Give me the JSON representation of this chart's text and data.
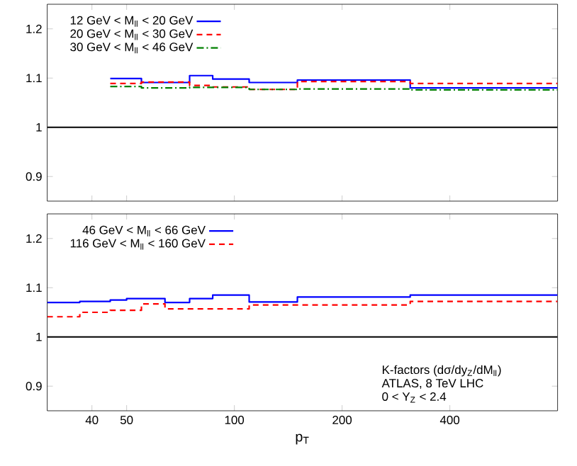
{
  "chart_data": [
    {
      "type": "step",
      "log": "x",
      "legend": "top left",
      "tick_labels": "y",
      "xlim": [
        30,
        800
      ],
      "xticks": [
        40,
        50,
        100,
        200,
        400
      ],
      "ylim": [
        0.85,
        1.25
      ],
      "yticks": [
        0.9,
        1,
        1.1,
        1.2
      ],
      "ref_lines": [
        {
          "axis": "y",
          "value": 1,
          "color": "#000000"
        }
      ],
      "series": [
        {
          "name": "12 GeV < M$_{ll}$ < 20 GeV",
          "color": "#0000ff",
          "line_style": "solid",
          "x": [
            45,
            55,
            75,
            87,
            110,
            150,
            310,
            800
          ],
          "values": [
            1.099,
            1.091,
            1.105,
            1.098,
            1.091,
            1.096,
            1.08,
            1.08
          ]
        },
        {
          "name": "20 GeV < M$_{ll}$ < 30 GeV",
          "color": "#ff0000",
          "line_style": "dashed",
          "x": [
            45,
            55,
            75,
            87,
            110,
            150,
            310,
            800
          ],
          "values": [
            1.089,
            1.092,
            1.085,
            1.082,
            1.077,
            1.093,
            1.089,
            1.089
          ]
        },
        {
          "name": "30 GeV < M$_{ll}$ < 46 GeV",
          "color": "#008000",
          "line_style": "dashdot",
          "x": [
            45,
            55,
            75,
            87,
            110,
            150,
            310,
            800
          ],
          "values": [
            1.083,
            1.08,
            1.081,
            1.081,
            1.077,
            1.078,
            1.076,
            1.076
          ]
        }
      ]
    },
    {
      "type": "step",
      "log": "x",
      "legend": "top left",
      "xlabel": "p$_{T}$",
      "xlim": [
        30,
        800
      ],
      "xticks": [
        40,
        50,
        100,
        200,
        400
      ],
      "ylim": [
        0.85,
        1.25
      ],
      "yticks": [
        0.9,
        1,
        1.1,
        1.2
      ],
      "ref_lines": [
        {
          "axis": "y",
          "value": 1,
          "color": "#000000"
        }
      ],
      "annotations": [
        "K-factors (dσ/dy$_{Z}$/dM$_{ll}$)",
        "ATLAS, 8 TeV LHC",
        "0 < Y$_{Z}$ < 2.4"
      ],
      "series": [
        {
          "name": "46 GeV < M$_{ll}$ < 66 GeV",
          "color": "#0000ff",
          "line_style": "solid",
          "x": [
            30,
            37,
            45,
            50,
            64,
            75,
            87,
            110,
            150,
            310,
            800
          ],
          "values": [
            1.07,
            1.072,
            1.075,
            1.078,
            1.07,
            1.078,
            1.085,
            1.071,
            1.081,
            1.085,
            1.085
          ]
        },
        {
          "name": "116 GeV < M$_{ll}$ < 160 GeV",
          "color": "#ff0000",
          "line_style": "dashed",
          "x": [
            30,
            37,
            45,
            55,
            64,
            110,
            310,
            800
          ],
          "values": [
            1.041,
            1.05,
            1.054,
            1.067,
            1.057,
            1.065,
            1.072,
            1.072
          ]
        }
      ]
    }
  ]
}
